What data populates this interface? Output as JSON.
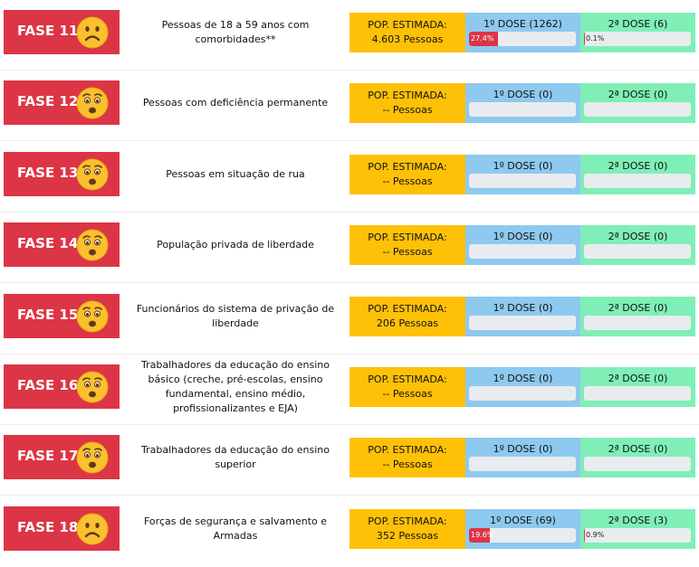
{
  "colors": {
    "phase_bg": "#dc3545",
    "pop_bg": "#ffc107",
    "dose1_bg": "#8ec9ef",
    "dose2_bg": "#7fefb7",
    "bar_track": "#e9ecef",
    "bar_fill": "#dc3545"
  },
  "phases": [
    {
      "phase": "FASE 11",
      "face_icon": "sad-face-icon",
      "desc": "Pessoas de 18 a 59 anos com comorbidades**",
      "pop_title": "POP. ESTIMADA:",
      "pop_value": "4.603 Pessoas",
      "dose1_title": "1º DOSE (1262)",
      "dose1_pct": 27.4,
      "dose1_label": "27.4%",
      "dose2_title": "2ª DOSE (6)",
      "dose2_pct": 0.1,
      "dose2_label": "0.1%"
    },
    {
      "phase": "FASE 12",
      "face_icon": "worried-face-icon",
      "desc": "Pessoas com deficiência permanente",
      "pop_title": "POP. ESTIMADA:",
      "pop_value": "-- Pessoas",
      "dose1_title": "1º DOSE (0)",
      "dose1_pct": 0,
      "dose1_label": "",
      "dose2_title": "2ª DOSE (0)",
      "dose2_pct": 0,
      "dose2_label": ""
    },
    {
      "phase": "FASE 13",
      "face_icon": "worried-face-icon",
      "desc": "Pessoas em situação de rua",
      "pop_title": "POP. ESTIMADA:",
      "pop_value": "-- Pessoas",
      "dose1_title": "1º DOSE (0)",
      "dose1_pct": 0,
      "dose1_label": "",
      "dose2_title": "2ª DOSE (0)",
      "dose2_pct": 0,
      "dose2_label": ""
    },
    {
      "phase": "FASE 14",
      "face_icon": "worried-face-icon",
      "desc": "População privada de liberdade",
      "pop_title": "POP. ESTIMADA:",
      "pop_value": "-- Pessoas",
      "dose1_title": "1º DOSE (0)",
      "dose1_pct": 0,
      "dose1_label": "",
      "dose2_title": "2ª DOSE (0)",
      "dose2_pct": 0,
      "dose2_label": ""
    },
    {
      "phase": "FASE 15",
      "face_icon": "worried-face-icon",
      "desc": "Funcionários do sistema de privação de liberdade",
      "pop_title": "POP. ESTIMADA:",
      "pop_value": "206 Pessoas",
      "dose1_title": "1º DOSE (0)",
      "dose1_pct": 0,
      "dose1_label": "",
      "dose2_title": "2ª DOSE (0)",
      "dose2_pct": 0,
      "dose2_label": ""
    },
    {
      "phase": "FASE 16",
      "face_icon": "worried-face-icon",
      "desc": "Trabalhadores da educação do ensino básico (creche, pré-escolas, ensino fundamental, ensino médio, profissionalizantes e EJA)",
      "pop_title": "POP. ESTIMADA:",
      "pop_value": "-- Pessoas",
      "dose1_title": "1º DOSE (0)",
      "dose1_pct": 0,
      "dose1_label": "",
      "dose2_title": "2ª DOSE (0)",
      "dose2_pct": 0,
      "dose2_label": ""
    },
    {
      "phase": "FASE 17",
      "face_icon": "worried-face-icon",
      "desc": "Trabalhadores da educação do ensino superior",
      "pop_title": "POP. ESTIMADA:",
      "pop_value": "-- Pessoas",
      "dose1_title": "1º DOSE (0)",
      "dose1_pct": 0,
      "dose1_label": "",
      "dose2_title": "2ª DOSE (0)",
      "dose2_pct": 0,
      "dose2_label": ""
    },
    {
      "phase": "FASE 18",
      "face_icon": "sad-face-icon",
      "desc": "Forças de segurança e salvamento e Armadas",
      "pop_title": "POP. ESTIMADA:",
      "pop_value": "352 Pessoas",
      "dose1_title": "1º DOSE (69)",
      "dose1_pct": 19.6,
      "dose1_label": "19.6%",
      "dose2_title": "2ª DOSE (3)",
      "dose2_pct": 0.9,
      "dose2_label": "0.9%"
    }
  ]
}
